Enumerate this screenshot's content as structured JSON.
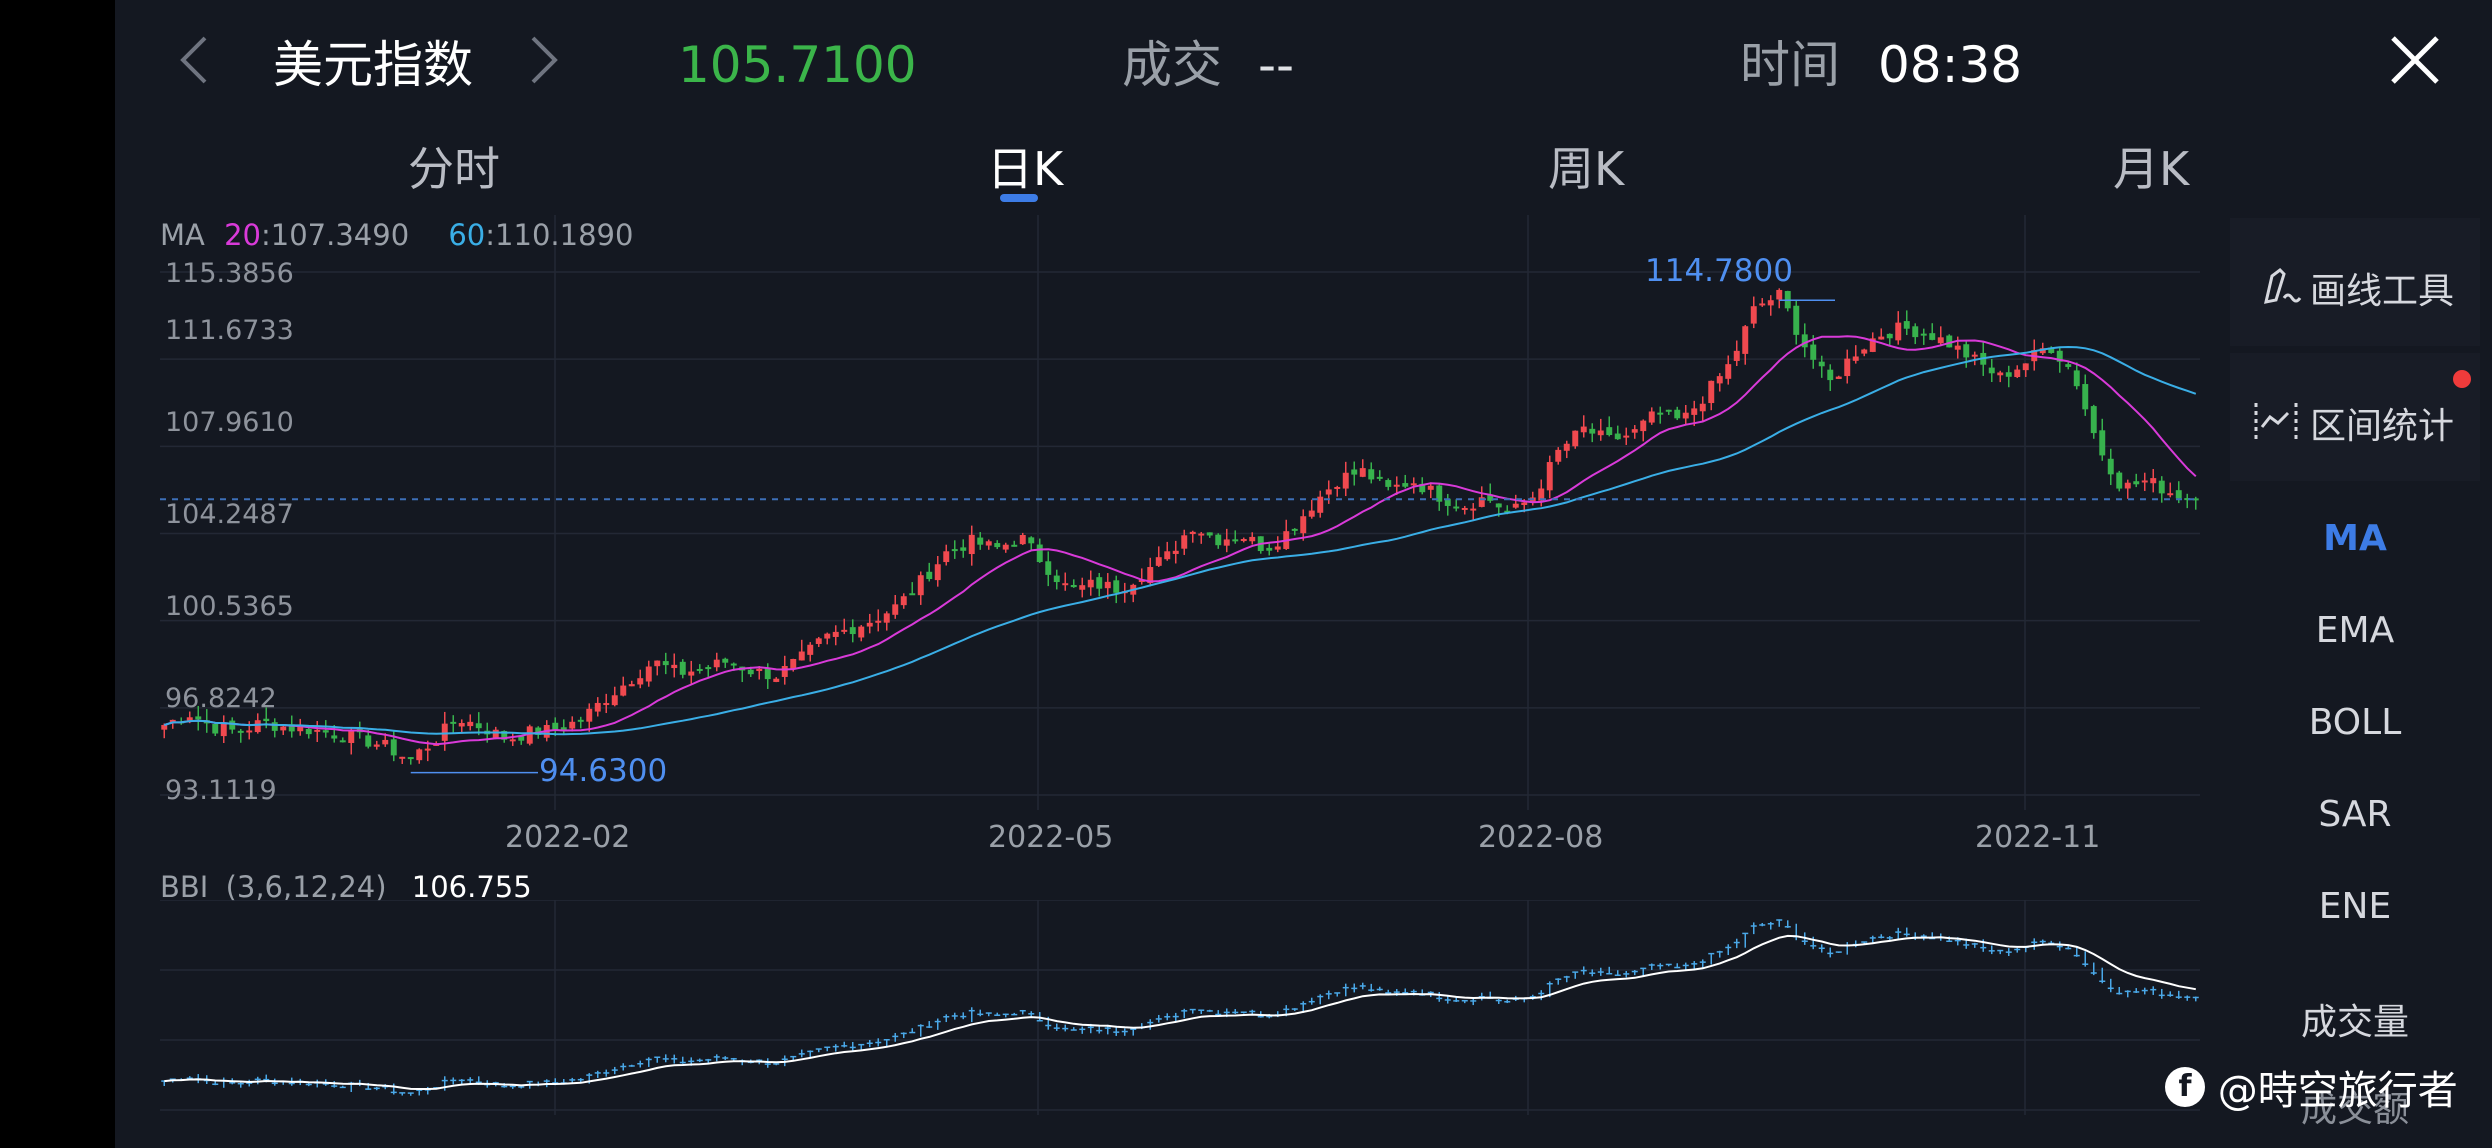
{
  "header": {
    "title": "美元指数",
    "price": "105.7100",
    "volume_label": "成交",
    "volume_value": "--",
    "time_label": "时间",
    "time_value": "08:38"
  },
  "tabs": [
    {
      "label": "分时"
    },
    {
      "label": "日K"
    },
    {
      "label": "周K"
    },
    {
      "label": "月K"
    }
  ],
  "active_tab": "日K",
  "sidebar": {
    "drawing_tool": "画线工具",
    "range_stats": "区间统计",
    "indicators": [
      "MA",
      "EMA",
      "BOLL",
      "SAR",
      "ENE"
    ],
    "active_indicator": "MA",
    "volume": "成交量",
    "turnover": "成交额"
  },
  "ma_legend": {
    "name": "MA",
    "ma20_label": "20",
    "ma20_value": "107.3490",
    "ma60_label": "60",
    "ma60_value": "110.1890"
  },
  "colors": {
    "up": "#f0494f",
    "down": "#37b24d",
    "ma20": "#d93ad9",
    "ma60": "#3aaee6",
    "accent": "#3d7ce6",
    "price_green": "#3bb54a",
    "bbi_line": "#ffffff",
    "bbi_bars": "#4aa8e8"
  },
  "watermark": "@時空旅行者",
  "chart_data": [
    {
      "type": "candlestick",
      "title": "美元指数 日K",
      "y_ticks": [
        "115.3856",
        "111.6733",
        "107.9610",
        "104.2487",
        "100.5365",
        "96.8242",
        "93.1119"
      ],
      "ylim": [
        93.1119,
        115.3856
      ],
      "x_ticks": [
        "2022-02",
        "2022-05",
        "2022-08",
        "2022-11"
      ],
      "annotations": {
        "high": "114.7800",
        "low": "94.6300"
      },
      "current_price_line": 105.71,
      "close_series": [
        96.1,
        96.6,
        96.0,
        95.8,
        96.2,
        96.0,
        95.9,
        95.7,
        95.5,
        95.2,
        94.63,
        95.4,
        96.4,
        96.0,
        95.5,
        95.8,
        95.9,
        96.3,
        97.2,
        98.0,
        98.8,
        98.3,
        98.5,
        98.8,
        98.4,
        98.2,
        98.9,
        99.8,
        100.2,
        100.6,
        101.2,
        102.3,
        103.5,
        103.9,
        103.6,
        104.1,
        102.9,
        101.8,
        102.1,
        101.9,
        102.6,
        103.3,
        104.6,
        104.0,
        104.2,
        103.6,
        104.4,
        105.6,
        106.6,
        106.9,
        106.1,
        106.5,
        105.9,
        105.4,
        105.8,
        105.1,
        105.9,
        107.8,
        108.7,
        108.2,
        108.5,
        109.4,
        109.0,
        110.2,
        111.5,
        113.9,
        114.4,
        112.3,
        110.6,
        111.9,
        112.7,
        113.0,
        112.8,
        112.3,
        111.6,
        110.9,
        111.5,
        112.3,
        111.1,
        108.0,
        106.2,
        106.5,
        106.0,
        105.71
      ],
      "ma20_last": 107.349,
      "ma60_last": 110.189
    },
    {
      "type": "line",
      "title": "BBI",
      "params": "(3,6,12,24)",
      "value": "106.755"
    }
  ]
}
